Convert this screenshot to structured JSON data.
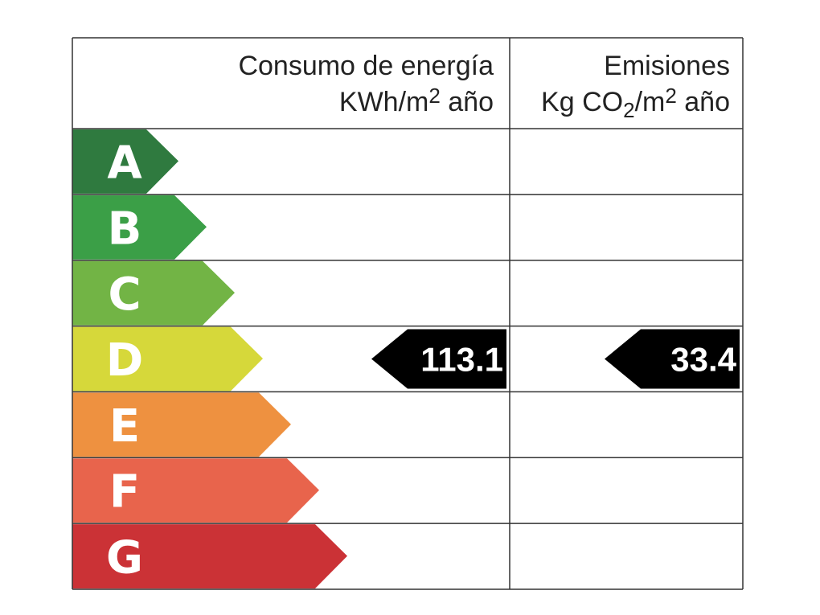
{
  "header": {
    "consumption_title": "Consumo de energía",
    "consumption_unit_parts": [
      "KWh/m",
      "2",
      " año"
    ],
    "emissions_title": "Emisiones",
    "emissions_unit_parts": [
      "Kg CO",
      "2",
      "/m",
      "2",
      " año"
    ]
  },
  "ratings": [
    {
      "letter": "A",
      "color": "#2f7a3f"
    },
    {
      "letter": "B",
      "color": "#3b9f47"
    },
    {
      "letter": "C",
      "color": "#72b445"
    },
    {
      "letter": "D",
      "color": "#d6d83a"
    },
    {
      "letter": "E",
      "color": "#ee9140"
    },
    {
      "letter": "F",
      "color": "#e8644c"
    },
    {
      "letter": "G",
      "color": "#cb3236"
    }
  ],
  "consumption": {
    "value": "113.1",
    "rating": "D"
  },
  "emissions": {
    "value": "33.4",
    "rating": "D"
  }
}
